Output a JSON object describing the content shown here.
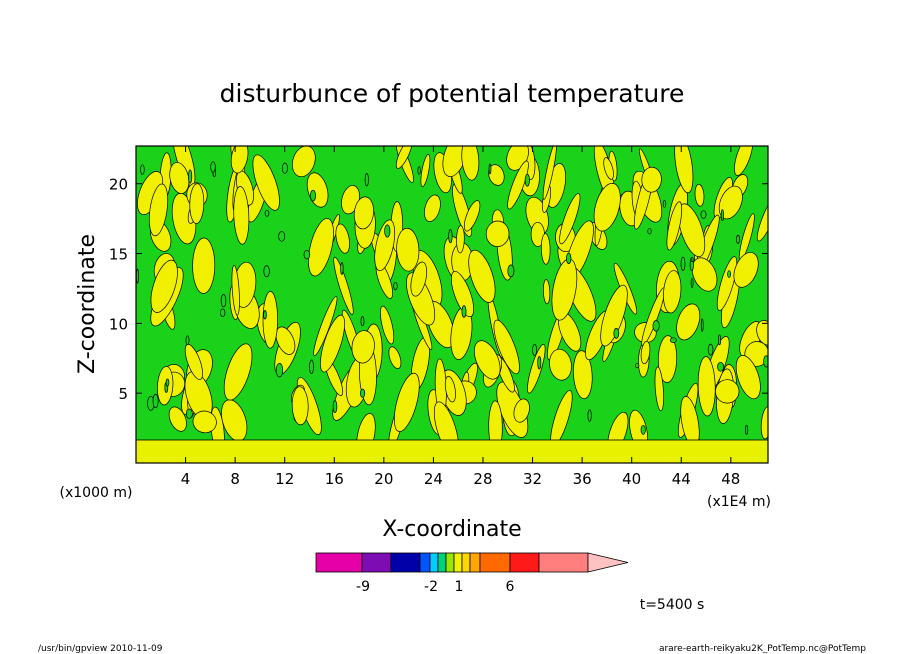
{
  "chart_data": {
    "type": "heatmap",
    "title": "disturbunce of potential temperature",
    "xlabel": "X-coordinate",
    "ylabel": "Z-coordinate",
    "x_scale_note": "(x1E4 m)",
    "y_scale_note": "(x1000 m)",
    "xlim": [
      0,
      51
    ],
    "ylim": [
      0,
      22.7
    ],
    "xticks": [
      4,
      8,
      12,
      16,
      20,
      24,
      28,
      32,
      36,
      40,
      44,
      48
    ],
    "yticks": [
      5,
      10,
      15,
      20
    ],
    "time_label": "t=5400 s",
    "colorbar": {
      "colors": [
        "#e600a8",
        "#7d0db3",
        "#0000a8",
        "#0055ff",
        "#00ccff",
        "#00d27a",
        "#9be600",
        "#f2f200",
        "#ffd700",
        "#ffa600",
        "#ff6a00",
        "#ff1a1a",
        "#ff7f7f",
        "#ffc2c2"
      ],
      "labels": [
        "-9",
        "-2",
        "1",
        "6"
      ],
      "label_positions": [
        -9,
        -2,
        1,
        6
      ]
    },
    "dominant_fields": {
      "background": "#19d219",
      "positive_patches": "#f0f000",
      "bottom_band": "#e8f200"
    }
  },
  "footer": {
    "left": "/usr/bin/gpview  2010-11-09",
    "right": "arare-earth-reikyaku2K_PotTemp.nc@PotTemp"
  }
}
